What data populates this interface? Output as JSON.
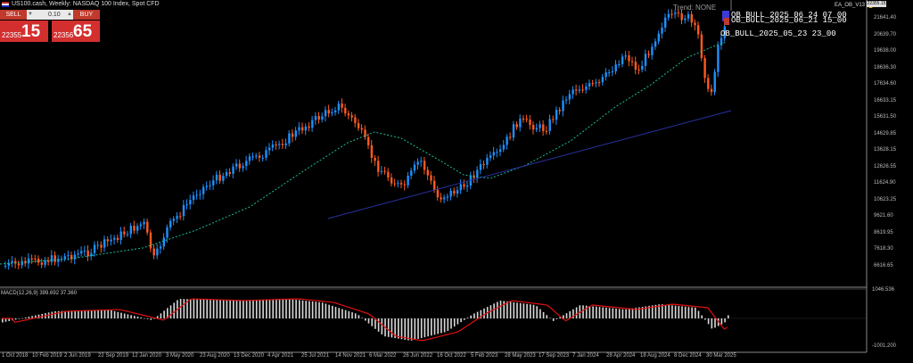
{
  "header": {
    "symbol_title": "US100.cash, Weekly: NASDAQ 100 Index, Spot CFD",
    "ea_label": "EA_OB_V13"
  },
  "trade_panel": {
    "sell_label": "SELL",
    "buy_label": "BUY",
    "lot_value": "0.10",
    "bid_small": "22355",
    "bid_big": "15",
    "ask_small": "22356",
    "ask_big": "65"
  },
  "annotations": {
    "trend_text": "Trend: NONE",
    "ob_labels": [
      "OB_BULL_2025_06_24 07_00",
      "OB_BULL_2025_06_21 15_00",
      "OB_BULL_2025_05_23 23_00"
    ]
  },
  "price_axis": {
    "current_tag": "22355.15",
    "ticks": [
      "21641.40",
      "20639.70",
      "19638.00",
      "18636.30",
      "17634.60",
      "16633.15",
      "15631.50",
      "14629.85",
      "13628.15",
      "12626.55",
      "11624.90",
      "10623.25",
      "9621.60",
      "8619.95",
      "7618.30",
      "6616.65"
    ]
  },
  "macd_axis": {
    "label": "MACD(12,26,9) 399.692 37.360",
    "top_tick": "1046.536",
    "bottom_tick": "-1001.200"
  },
  "time_axis": {
    "ticks": [
      "1 Oct 2018",
      "10 Feb 2019",
      "2 Jun 2019",
      "22 Sep 2019",
      "12 Jan 2020",
      "3 May 2020",
      "23 Aug 2020",
      "13 Dec 2020",
      "4 Apr 2021",
      "25 Jul 2021",
      "14 Nov 2021",
      "6 Mar 2022",
      "26 Jun 2022",
      "16 Oct 2022",
      "5 Feb 2023",
      "28 May 2023",
      "17 Sep 2023",
      "7 Jan 2024",
      "28 Apr 2024",
      "18 Aug 2024",
      "8 Dec 2024",
      "30 Mar 2025"
    ]
  },
  "colors": {
    "bull": "#1e90ff",
    "bear": "#ff5a1f",
    "ma": "#1abc9c",
    "trendline": "#2833a0",
    "macd_hist": "#d9d9d9",
    "macd_signal": "#e01010"
  }
}
